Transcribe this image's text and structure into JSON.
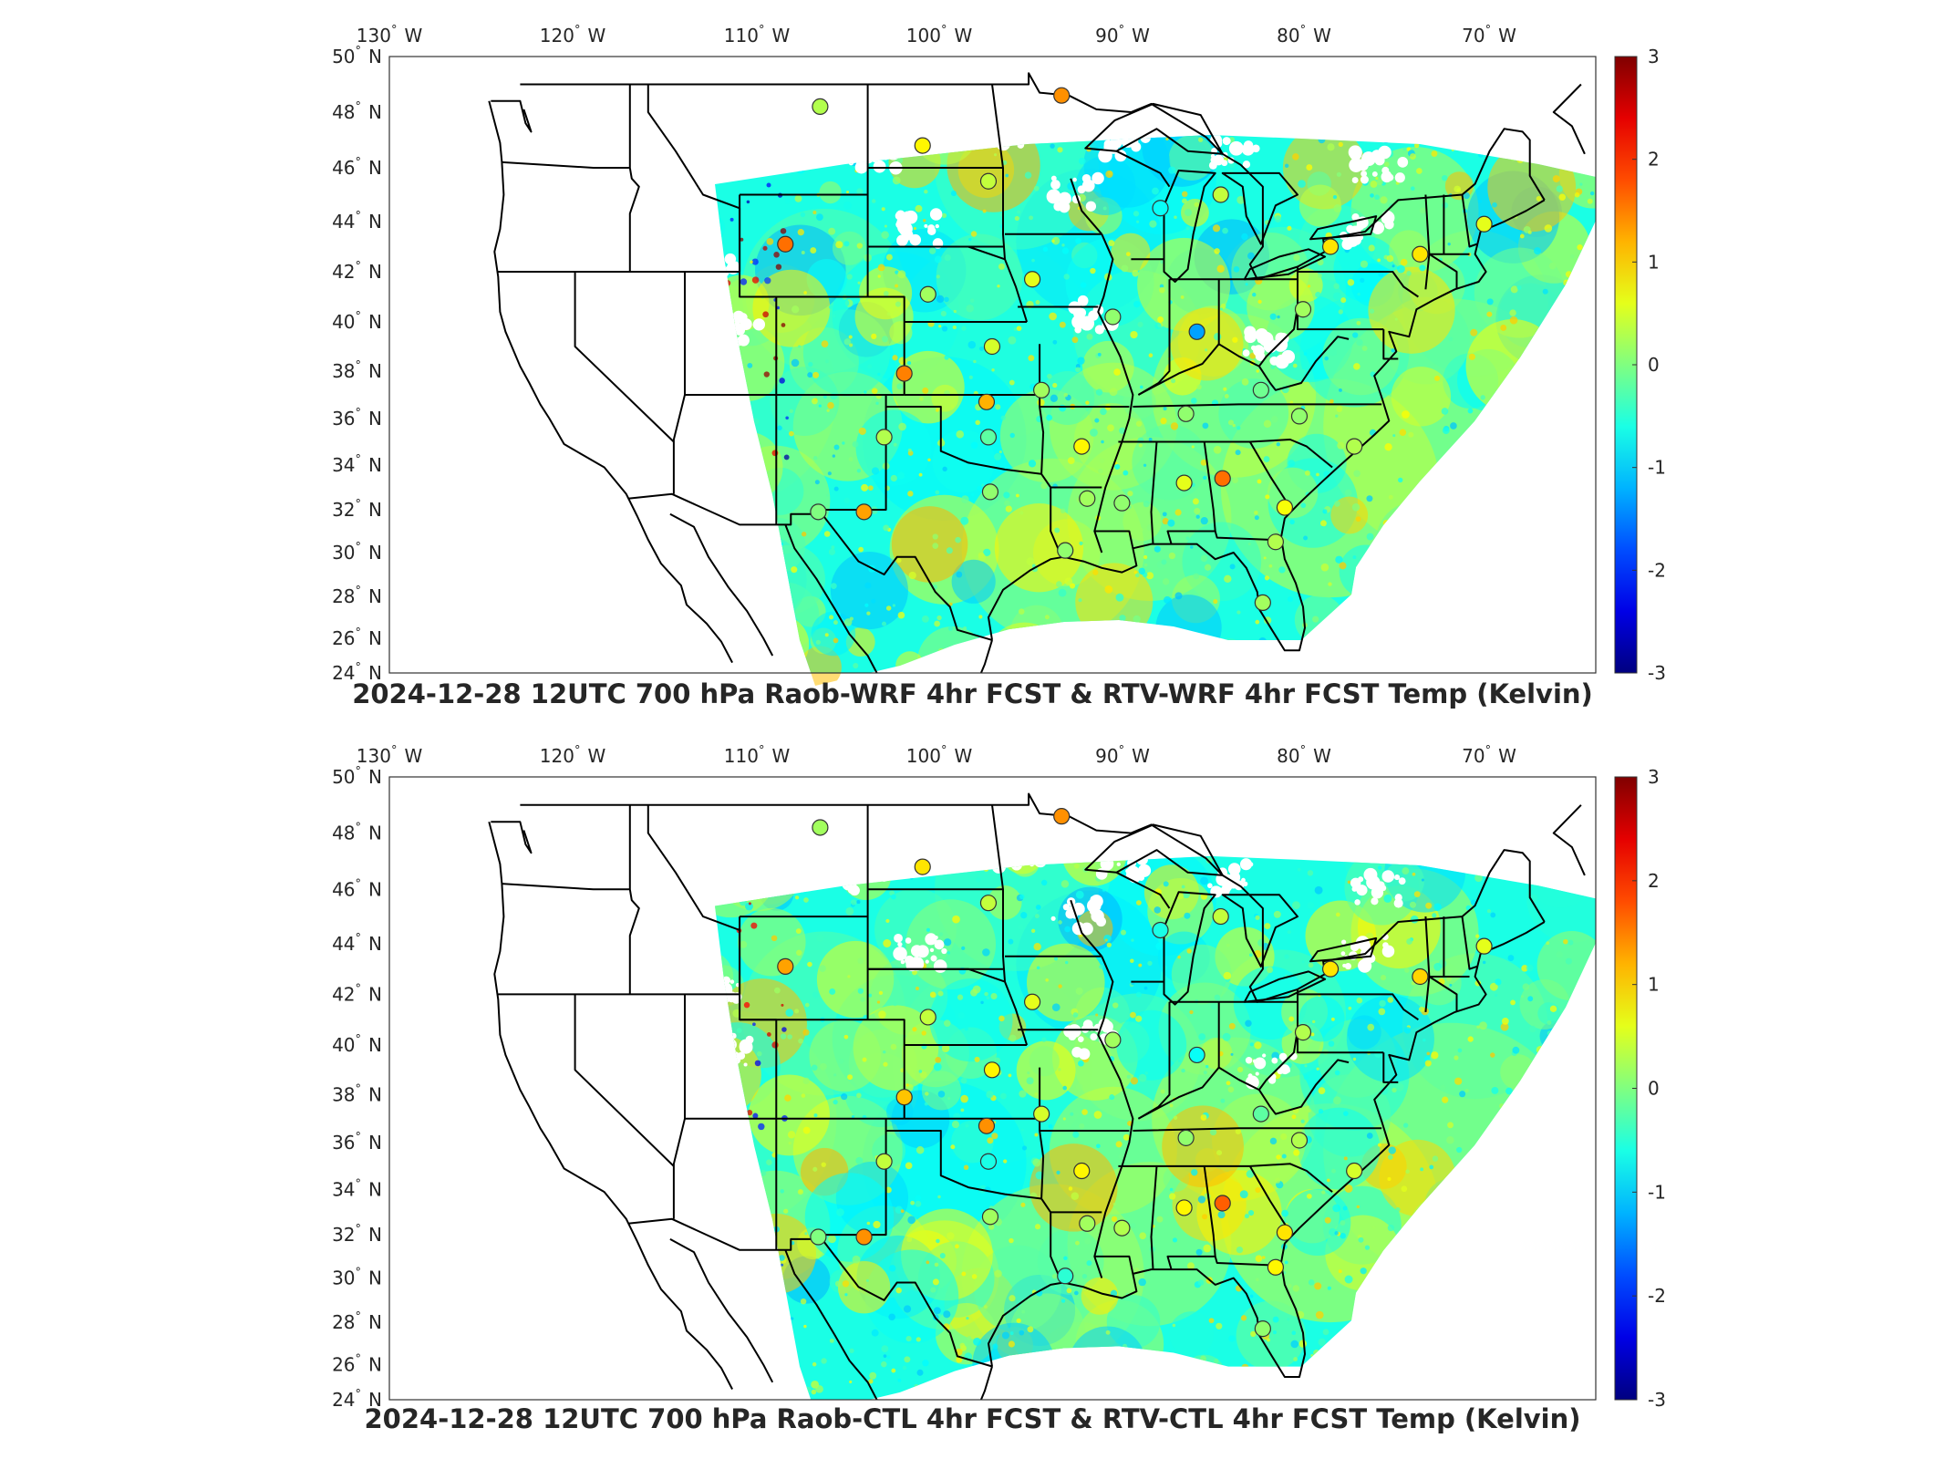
{
  "panels": [
    {
      "title": "2024-12-28 12UTC 700 hPa Raob-WRF 4hr FCST & RTV-WRF 4hr FCST Temp (Kelvin)",
      "stations": [
        {
          "lon": -106.6,
          "lat": 48.2,
          "v": 0.3
        },
        {
          "lon": -93.4,
          "lat": 48.6,
          "v": 1.4
        },
        {
          "lon": -101.0,
          "lat": 46.8,
          "v": 0.8
        },
        {
          "lon": -97.4,
          "lat": 45.5,
          "v": 0.4
        },
        {
          "lon": -108.5,
          "lat": 43.1,
          "v": 1.6
        },
        {
          "lon": -88.0,
          "lat": 44.5,
          "v": -0.7
        },
        {
          "lon": -84.7,
          "lat": 45.0,
          "v": 0.4
        },
        {
          "lon": -78.7,
          "lat": 43.0,
          "v": 0.9
        },
        {
          "lon": -73.8,
          "lat": 42.7,
          "v": 0.9
        },
        {
          "lon": -70.3,
          "lat": 43.9,
          "v": 0.6
        },
        {
          "lon": -95.0,
          "lat": 41.7,
          "v": 0.6
        },
        {
          "lon": -100.7,
          "lat": 41.1,
          "v": 0.2
        },
        {
          "lon": -90.6,
          "lat": 40.2,
          "v": 0.1
        },
        {
          "lon": -86.0,
          "lat": 39.6,
          "v": -1.3
        },
        {
          "lon": -80.2,
          "lat": 40.5,
          "v": 0.2
        },
        {
          "lon": -97.2,
          "lat": 39.0,
          "v": 0.5
        },
        {
          "lon": -102.0,
          "lat": 37.9,
          "v": 1.5
        },
        {
          "lon": -97.5,
          "lat": 36.7,
          "v": 1.2
        },
        {
          "lon": -94.5,
          "lat": 37.2,
          "v": 0.2
        },
        {
          "lon": -86.6,
          "lat": 36.2,
          "v": 0.1
        },
        {
          "lon": -82.5,
          "lat": 37.2,
          "v": -0.1
        },
        {
          "lon": -80.4,
          "lat": 36.1,
          "v": 0.1
        },
        {
          "lon": -103.1,
          "lat": 35.2,
          "v": 0.3
        },
        {
          "lon": -97.4,
          "lat": 35.2,
          "v": -0.2
        },
        {
          "lon": -92.3,
          "lat": 34.8,
          "v": 0.8
        },
        {
          "lon": -77.4,
          "lat": 34.8,
          "v": 0.3
        },
        {
          "lon": -97.3,
          "lat": 32.8,
          "v": 0.1
        },
        {
          "lon": -104.2,
          "lat": 31.9,
          "v": 1.3
        },
        {
          "lon": -92.0,
          "lat": 32.5,
          "v": 0.2
        },
        {
          "lon": -90.1,
          "lat": 32.3,
          "v": 0.1
        },
        {
          "lon": -86.7,
          "lat": 33.2,
          "v": 0.6
        },
        {
          "lon": -84.6,
          "lat": 33.4,
          "v": 1.6
        },
        {
          "lon": -81.2,
          "lat": 32.1,
          "v": 0.7
        },
        {
          "lon": -106.7,
          "lat": 31.9,
          "v": 0.0
        },
        {
          "lon": -93.2,
          "lat": 30.1,
          "v": 0.1
        },
        {
          "lon": -81.7,
          "lat": 30.5,
          "v": 0.3
        },
        {
          "lon": -82.4,
          "lat": 27.7,
          "v": 0.2
        }
      ]
    },
    {
      "title": "2024-12-28 12UTC 700 hPa Raob-CTL 4hr FCST & RTV-CTL 4hr FCST Temp (Kelvin)",
      "stations": [
        {
          "lon": -106.6,
          "lat": 48.2,
          "v": 0.2
        },
        {
          "lon": -93.4,
          "lat": 48.6,
          "v": 1.4
        },
        {
          "lon": -101.0,
          "lat": 46.8,
          "v": 0.9
        },
        {
          "lon": -97.4,
          "lat": 45.5,
          "v": 0.4
        },
        {
          "lon": -108.5,
          "lat": 43.1,
          "v": 1.3
        },
        {
          "lon": -88.0,
          "lat": 44.5,
          "v": -0.6
        },
        {
          "lon": -84.7,
          "lat": 45.0,
          "v": 0.4
        },
        {
          "lon": -78.7,
          "lat": 43.0,
          "v": 0.9
        },
        {
          "lon": -73.8,
          "lat": 42.7,
          "v": 1.0
        },
        {
          "lon": -70.3,
          "lat": 43.9,
          "v": 0.6
        },
        {
          "lon": -95.0,
          "lat": 41.7,
          "v": 0.6
        },
        {
          "lon": -100.7,
          "lat": 41.1,
          "v": 0.4
        },
        {
          "lon": -90.6,
          "lat": 40.2,
          "v": 0.2
        },
        {
          "lon": -86.0,
          "lat": 39.6,
          "v": -0.7
        },
        {
          "lon": -80.2,
          "lat": 40.5,
          "v": 0.3
        },
        {
          "lon": -97.2,
          "lat": 39.0,
          "v": 0.8
        },
        {
          "lon": -102.0,
          "lat": 37.9,
          "v": 1.1
        },
        {
          "lon": -97.5,
          "lat": 36.7,
          "v": 1.4
        },
        {
          "lon": -94.5,
          "lat": 37.2,
          "v": 0.5
        },
        {
          "lon": -86.6,
          "lat": 36.2,
          "v": 0.1
        },
        {
          "lon": -82.5,
          "lat": 37.2,
          "v": -0.2
        },
        {
          "lon": -80.4,
          "lat": 36.1,
          "v": 0.3
        },
        {
          "lon": -103.1,
          "lat": 35.2,
          "v": 0.4
        },
        {
          "lon": -97.4,
          "lat": 35.2,
          "v": -0.6
        },
        {
          "lon": -92.3,
          "lat": 34.8,
          "v": 0.8
        },
        {
          "lon": -77.4,
          "lat": 34.8,
          "v": 0.5
        },
        {
          "lon": -97.3,
          "lat": 32.8,
          "v": 0.2
        },
        {
          "lon": -104.2,
          "lat": 31.9,
          "v": 1.4
        },
        {
          "lon": -92.0,
          "lat": 32.5,
          "v": 0.2
        },
        {
          "lon": -90.1,
          "lat": 32.3,
          "v": 0.3
        },
        {
          "lon": -86.7,
          "lat": 33.2,
          "v": 0.8
        },
        {
          "lon": -84.6,
          "lat": 33.4,
          "v": 1.7
        },
        {
          "lon": -81.2,
          "lat": 32.1,
          "v": 0.9
        },
        {
          "lon": -106.7,
          "lat": 31.9,
          "v": 0.0
        },
        {
          "lon": -93.2,
          "lat": 30.1,
          "v": -0.5
        },
        {
          "lon": -81.7,
          "lat": 30.5,
          "v": 0.8
        },
        {
          "lon": -82.4,
          "lat": 27.7,
          "v": 0.1
        }
      ]
    }
  ],
  "axes": {
    "lon_ticks": [
      -130,
      -120,
      -110,
      -100,
      -90,
      -80,
      -70
    ],
    "lat_ticks": [
      24,
      26,
      28,
      30,
      32,
      34,
      36,
      38,
      40,
      42,
      44,
      46,
      48,
      50
    ],
    "lon_range": [
      -132,
      -64
    ],
    "lat_range": [
      24,
      50
    ],
    "deg_symbol": "°",
    "west_label": "W",
    "north_label": "N"
  },
  "colorbar": {
    "colormap": "jet",
    "range": [
      -3,
      3
    ],
    "ticks": [
      -3,
      -2,
      -1,
      0,
      1,
      2,
      3
    ]
  },
  "colors": {
    "land": "#ffffff",
    "borders": "#000000"
  }
}
